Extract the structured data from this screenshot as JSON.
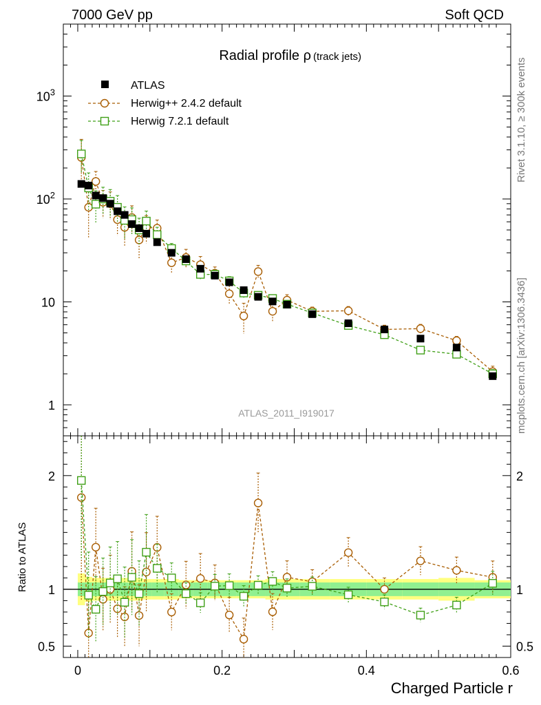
{
  "header": {
    "left": "7000 GeV pp",
    "right": "Soft QCD"
  },
  "side_text": {
    "rivet": "Rivet 3.1.10, ≥ 300k events",
    "mcplots": "mcplots.cern.ch [arXiv:1306.3436]"
  },
  "chart_data": {
    "type": "scatter",
    "title_main": "Radial profile",
    "title_symbol": "ρ",
    "title_sub": "(track jets)",
    "analysis_id": "ATLAS_2011_I919017",
    "xlabel": "Charged Particle r",
    "ylabel_ratio": "Ratio to ATLAS",
    "xlim": [
      -0.02,
      0.6
    ],
    "ylim": [
      0.5,
      5000
    ],
    "ylim_ratio": [
      0.4,
      2.35
    ],
    "x_ticks": [
      "0",
      "0.2",
      "0.4",
      "0.6"
    ],
    "y_ticks": [
      "1",
      "10",
      "10^2",
      "10^3"
    ],
    "ratio_ticks": [
      "0.5",
      "1",
      "2"
    ],
    "legend": [
      "ATLAS",
      "Herwig++ 2.4.2 default",
      "Herwig 7.2.1 default"
    ],
    "colors": {
      "atlas": "#000000",
      "herwigpp": "#a85c00",
      "herwig7": "#3f9f16",
      "band_inner": "#90f090",
      "band_outer": "#ffff80"
    },
    "x": [
      0.005,
      0.015,
      0.025,
      0.035,
      0.045,
      0.055,
      0.065,
      0.075,
      0.085,
      0.095,
      0.11,
      0.13,
      0.15,
      0.17,
      0.19,
      0.21,
      0.23,
      0.25,
      0.27,
      0.29,
      0.325,
      0.375,
      0.425,
      0.475,
      0.525,
      0.575
    ],
    "series": [
      {
        "name": "ATLAS",
        "values": [
          140,
          135,
          108,
          102,
          90,
          76,
          70,
          57,
          52,
          46,
          38,
          30,
          26,
          21,
          18,
          15.5,
          13,
          11.2,
          10.1,
          9.4,
          7.6,
          6.2,
          5.4,
          4.4,
          3.6,
          1.9
        ],
        "band_inner": [
          0.06,
          0.06,
          0.06,
          0.06,
          0.06,
          0.06,
          0.06,
          0.06,
          0.06,
          0.06,
          0.06,
          0.06,
          0.06,
          0.06,
          0.06,
          0.06,
          0.06,
          0.06,
          0.06,
          0.06,
          0.06,
          0.06,
          0.06,
          0.06,
          0.06,
          0.06
        ],
        "band_outer": [
          0.14,
          0.11,
          0.1,
          0.1,
          0.1,
          0.1,
          0.1,
          0.1,
          0.1,
          0.09,
          0.09,
          0.09,
          0.08,
          0.08,
          0.08,
          0.08,
          0.08,
          0.08,
          0.09,
          0.09,
          0.09,
          0.09,
          0.09,
          0.09,
          0.1,
          0.08
        ]
      },
      {
        "name": "Herwig++ 2.4.2 default",
        "values": [
          253,
          83,
          148,
          93,
          90,
          63,
          53,
          66,
          40,
          53,
          52,
          24,
          27,
          23,
          19,
          12,
          7.3,
          19.7,
          8.1,
          10.4,
          8.1,
          8.2,
          5.4,
          5.5,
          4.2,
          2.1
        ],
        "errors": [
          0.5,
          0.5,
          0.25,
          0.3,
          0.3,
          0.3,
          0.35,
          0.3,
          0.35,
          0.3,
          0.2,
          0.2,
          0.2,
          0.2,
          0.15,
          0.2,
          0.33,
          0.15,
          0.2,
          0.13,
          0.1,
          0.1,
          0.1,
          0.1,
          0.1,
          0.13
        ]
      },
      {
        "name": "Herwig 7.2.1 default",
        "values": [
          274,
          128,
          89,
          100,
          95,
          83,
          62,
          63,
          50,
          61,
          45,
          33,
          25,
          18.5,
          18.5,
          16,
          12.2,
          11.6,
          10.8,
          9.5,
          7.8,
          5.9,
          4.8,
          3.4,
          3.1,
          2.0
        ],
        "errors": [
          0.35,
          0.4,
          0.35,
          0.3,
          0.3,
          0.3,
          0.35,
          0.3,
          0.3,
          0.25,
          0.18,
          0.12,
          0.1,
          0.1,
          0.1,
          0.1,
          0.1,
          0.08,
          0.08,
          0.08,
          0.08,
          0.07,
          0.07,
          0.08,
          0.08,
          0.1
        ]
      }
    ]
  }
}
